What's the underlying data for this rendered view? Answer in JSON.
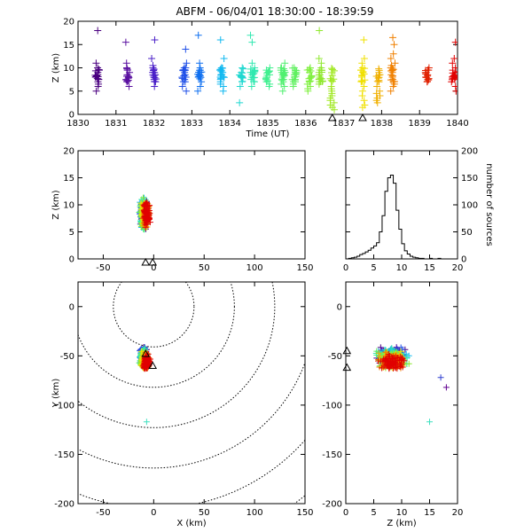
{
  "title": "ABFM - 06/04/01 18:30:00 - 18:39:59",
  "chart_data": [
    {
      "id": "time_height",
      "type": "scatter",
      "marker": "plus",
      "xlabel": "Time (UT)",
      "ylabel": "Z (km)",
      "xlim": [
        1830,
        1840
      ],
      "ylim": [
        0,
        20
      ],
      "xticks": [
        1830,
        1831,
        1832,
        1833,
        1834,
        1835,
        1836,
        1837,
        1838,
        1839,
        1840
      ],
      "yticks": [
        0,
        5,
        10,
        15,
        20
      ],
      "groups": [
        {
          "t": 1830.5,
          "color": "#4a0080",
          "z": [
            18,
            11,
            10,
            9.5,
            9,
            8.5,
            8,
            7.5,
            7,
            6.5,
            6,
            5
          ]
        },
        {
          "t": 1831.3,
          "color": "#5a10a0",
          "z": [
            15.5,
            11,
            10,
            9.5,
            9,
            8.5,
            8,
            7.5,
            7,
            6
          ]
        },
        {
          "t": 1832.0,
          "color": "#4b20c8",
          "z": [
            16,
            12,
            10.5,
            10,
            9.5,
            9,
            8.5,
            8,
            7.5,
            7,
            6
          ]
        },
        {
          "t": 1832.8,
          "color": "#2050e8",
          "z": [
            14,
            11,
            10,
            9.5,
            9,
            8.5,
            8,
            7.5,
            7,
            6,
            5
          ]
        },
        {
          "t": 1833.2,
          "color": "#1070f0",
          "z": [
            17,
            11,
            10,
            9.5,
            9,
            8.5,
            8,
            7,
            6,
            5
          ]
        },
        {
          "t": 1833.8,
          "color": "#10b8f0",
          "z": [
            16,
            12,
            10,
            9.5,
            9,
            8.5,
            8,
            7.5,
            7,
            6.5,
            6,
            5
          ]
        },
        {
          "t": 1834.3,
          "color": "#20d8d0",
          "z": [
            10,
            9,
            8,
            7,
            6,
            2.5
          ]
        },
        {
          "t": 1834.6,
          "color": "#30e8b0",
          "z": [
            17,
            15.5,
            11,
            10,
            9.5,
            9,
            8.5,
            8,
            7.5,
            7,
            6
          ]
        },
        {
          "t": 1835.0,
          "color": "#40f090",
          "z": [
            10,
            9,
            8.5,
            8,
            7.5,
            7,
            6.5,
            6
          ]
        },
        {
          "t": 1835.4,
          "color": "#50f070",
          "z": [
            11,
            10,
            9.5,
            9,
            8.5,
            8,
            7.5,
            7,
            6.5,
            6,
            5
          ]
        },
        {
          "t": 1835.7,
          "color": "#60f060",
          "z": [
            10,
            9,
            8.5,
            8,
            7.5,
            7,
            6.5,
            6
          ]
        },
        {
          "t": 1836.1,
          "color": "#80f040",
          "z": [
            10,
            9,
            8,
            7,
            6.5,
            6,
            5.5,
            5
          ]
        },
        {
          "t": 1836.4,
          "color": "#90e830",
          "z": [
            18,
            12,
            11,
            10,
            9.5,
            9,
            8.5,
            8,
            7.5,
            7,
            6.5
          ]
        },
        {
          "t": 1836.7,
          "color": "#a0e820",
          "z": [
            6,
            5.5,
            5,
            4.5,
            4,
            3.5,
            3,
            2.5,
            2,
            1.5,
            1
          ]
        },
        {
          "t": 1837.5,
          "color": "#f0e000",
          "z": [
            16,
            12,
            11,
            10,
            9.5,
            9,
            8,
            7,
            6,
            5,
            4,
            3,
            2,
            1.5
          ]
        },
        {
          "t": 1837.9,
          "color": "#f0b000",
          "z": [
            7,
            6,
            5,
            4.5,
            4,
            3.5,
            3,
            2.5
          ]
        },
        {
          "t": 1838.3,
          "color": "#f08000",
          "z": [
            16.5,
            15,
            13,
            12,
            11,
            10.5,
            10,
            9.5,
            9,
            8.5,
            8,
            7.5,
            7,
            6.5,
            6,
            5
          ]
        },
        {
          "t": 1839.2,
          "color": "#e02000",
          "z": [
            10,
            9,
            8.5,
            8,
            7.5,
            7
          ]
        },
        {
          "t": 1839.9,
          "color": "#e00000",
          "z": [
            15.5,
            12,
            11,
            10,
            9.5,
            9,
            8.5,
            8,
            7.5,
            7,
            6,
            5
          ]
        }
      ],
      "markers_triangle_x": [
        1836.7,
        1837.5
      ]
    },
    {
      "id": "x_z",
      "type": "scatter",
      "marker": "plus",
      "xlabel": "",
      "ylabel": "Z (km)",
      "xlim": [
        -75,
        150
      ],
      "ylim": [
        0,
        20
      ],
      "xticks": [
        -50,
        0,
        50,
        100,
        150
      ],
      "yticks": [
        0,
        5,
        10,
        15,
        20
      ]
    },
    {
      "id": "z_histogram",
      "type": "line",
      "step": true,
      "xlabel": "",
      "ylabel": "number of sources",
      "xlim": [
        0,
        20
      ],
      "ylim": [
        0,
        200
      ],
      "xticks": [
        0,
        5,
        10,
        15,
        20
      ],
      "yticks": [
        0,
        50,
        100,
        150,
        200
      ],
      "bin_width": 0.5,
      "bins_start": 0,
      "counts": [
        0,
        1,
        2,
        3,
        5,
        8,
        10,
        13,
        16,
        20,
        24,
        30,
        50,
        80,
        125,
        150,
        155,
        140,
        90,
        55,
        28,
        15,
        9,
        5,
        3,
        2,
        1,
        1,
        0,
        0,
        1,
        0,
        0,
        1,
        0,
        0,
        0,
        0,
        0,
        0
      ]
    },
    {
      "id": "x_y",
      "type": "scatter",
      "marker": "plus",
      "xlabel": "X (km)",
      "ylabel": "Y (km)",
      "xlim": [
        -75,
        150
      ],
      "ylim": [
        -200,
        25
      ],
      "xticks": [
        -50,
        0,
        50,
        100,
        150
      ],
      "yticks": [
        -200,
        -150,
        -100,
        -50,
        0
      ],
      "range_rings_center": [
        0,
        0
      ],
      "range_rings_km": [
        40,
        80,
        120,
        160,
        200,
        240
      ],
      "cluster_center": [
        -8,
        -50
      ]
    },
    {
      "id": "z_y",
      "type": "scatter",
      "marker": "plus",
      "xlabel": "Z (km)",
      "ylabel": "",
      "xlim": [
        0,
        20
      ],
      "ylim": [
        -200,
        25
      ],
      "xticks": [
        0,
        5,
        10,
        15,
        20
      ],
      "yticks": [
        -200,
        -150,
        -100,
        -50,
        0
      ]
    }
  ],
  "palette": [
    "#4a0080",
    "#5a10a0",
    "#4b20c8",
    "#2050e8",
    "#1070f0",
    "#10b8f0",
    "#20d8d0",
    "#30e8b0",
    "#40f090",
    "#60f060",
    "#90e830",
    "#a0e820",
    "#f0e000",
    "#f0b000",
    "#f08000",
    "#e02000",
    "#e00000"
  ]
}
